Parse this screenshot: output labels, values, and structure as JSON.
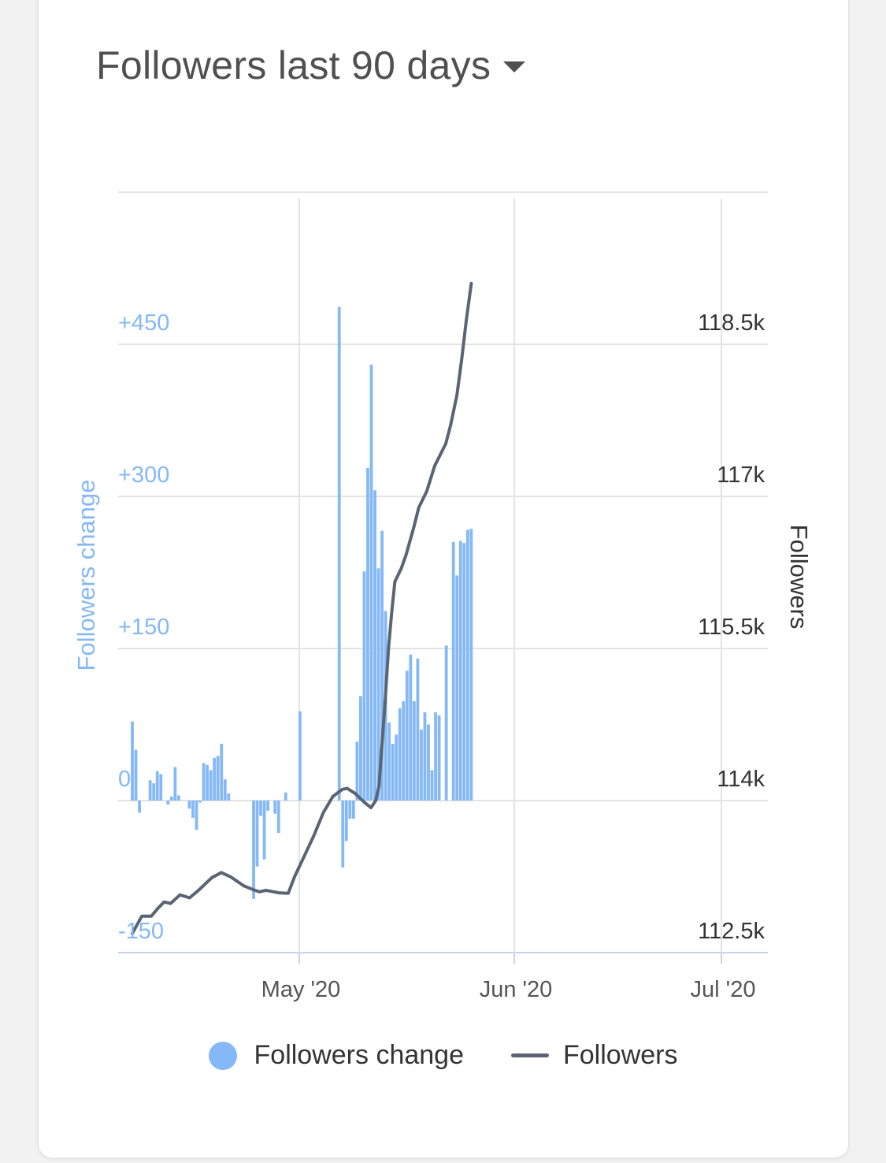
{
  "header": {
    "title": "Followers last 90 days"
  },
  "colors": {
    "bar": "#84b8f7",
    "line": "#5a6473",
    "grid": "#e3e3e3",
    "left_axis_text": "#84b8f7",
    "right_axis_text": "#333333"
  },
  "legend": {
    "change_label": "Followers change",
    "followers_label": "Followers"
  },
  "chart_data": {
    "type": "bar",
    "title": "Followers last 90 days",
    "legend_position": "bottom",
    "grid": true,
    "x_ticks": [
      "May '20",
      "Jun '20",
      "Jul '20"
    ],
    "y_left": {
      "label": "Followers change",
      "ticks": [
        "+450",
        "+300",
        "+150",
        "0",
        "-150"
      ],
      "range": [
        -150,
        600
      ]
    },
    "y_right": {
      "label": "Followers",
      "ticks": [
        "118.5k",
        "117k",
        "115.5k",
        "114k",
        "112.5k"
      ],
      "range": [
        112500,
        118500
      ]
    },
    "series": [
      {
        "name": "Followers change",
        "type": "bar",
        "axis": "left",
        "values": [
          78,
          50,
          -12,
          0,
          0,
          20,
          17,
          29,
          26,
          0,
          -4,
          4,
          33,
          5,
          0,
          0,
          -8,
          -17,
          -29,
          -2,
          37,
          35,
          30,
          42,
          44,
          56,
          21,
          7,
          0,
          0,
          0,
          0,
          0,
          0,
          -97,
          -65,
          -15,
          -58,
          -10,
          0,
          -13,
          -32,
          0,
          8,
          0,
          0,
          0,
          88,
          0,
          0,
          0,
          0,
          0,
          0,
          0,
          0,
          0,
          0,
          487,
          -66,
          -40,
          -18,
          -18,
          58,
          103,
          226,
          328,
          430,
          306,
          229,
          266,
          187,
          77,
          56,
          65,
          91,
          98,
          128,
          144,
          98,
          140,
          70,
          87,
          75,
          30,
          87,
          84,
          0,
          153,
          0,
          255,
          222,
          256,
          254,
          267,
          268
        ]
      },
      {
        "name": "Followers",
        "type": "line",
        "axis": "right",
        "points": [
          [
            0,
            112690
          ],
          [
            6,
            112860
          ],
          [
            12,
            112860
          ],
          [
            16,
            112935
          ],
          [
            20,
            113000
          ],
          [
            24,
            112985
          ],
          [
            30,
            113070
          ],
          [
            36,
            113040
          ],
          [
            42,
            113120
          ],
          [
            50,
            113240
          ],
          [
            56,
            113290
          ],
          [
            62,
            113245
          ],
          [
            70,
            113160
          ],
          [
            76,
            113120
          ],
          [
            80,
            113100
          ],
          [
            84,
            113115
          ],
          [
            92,
            113090
          ],
          [
            98,
            113085
          ],
          [
            102,
            113250
          ],
          [
            108,
            113450
          ],
          [
            114,
            113650
          ],
          [
            120,
            113880
          ],
          [
            126,
            114040
          ],
          [
            132,
            114110
          ],
          [
            135,
            114120
          ],
          [
            140,
            114070
          ],
          [
            146,
            113980
          ],
          [
            150,
            113930
          ],
          [
            153,
            114000
          ],
          [
            155,
            114140
          ],
          [
            157,
            114570
          ],
          [
            159,
            115000
          ],
          [
            161,
            115500
          ],
          [
            163,
            115850
          ],
          [
            165,
            116160
          ],
          [
            169,
            116290
          ],
          [
            172,
            116420
          ],
          [
            177,
            116700
          ],
          [
            180,
            116890
          ],
          [
            185,
            117050
          ],
          [
            190,
            117300
          ],
          [
            197,
            117520
          ],
          [
            200,
            117700
          ],
          [
            204,
            118000
          ],
          [
            207,
            118350
          ],
          [
            210,
            118750
          ],
          [
            213,
            119100
          ]
        ]
      }
    ]
  }
}
